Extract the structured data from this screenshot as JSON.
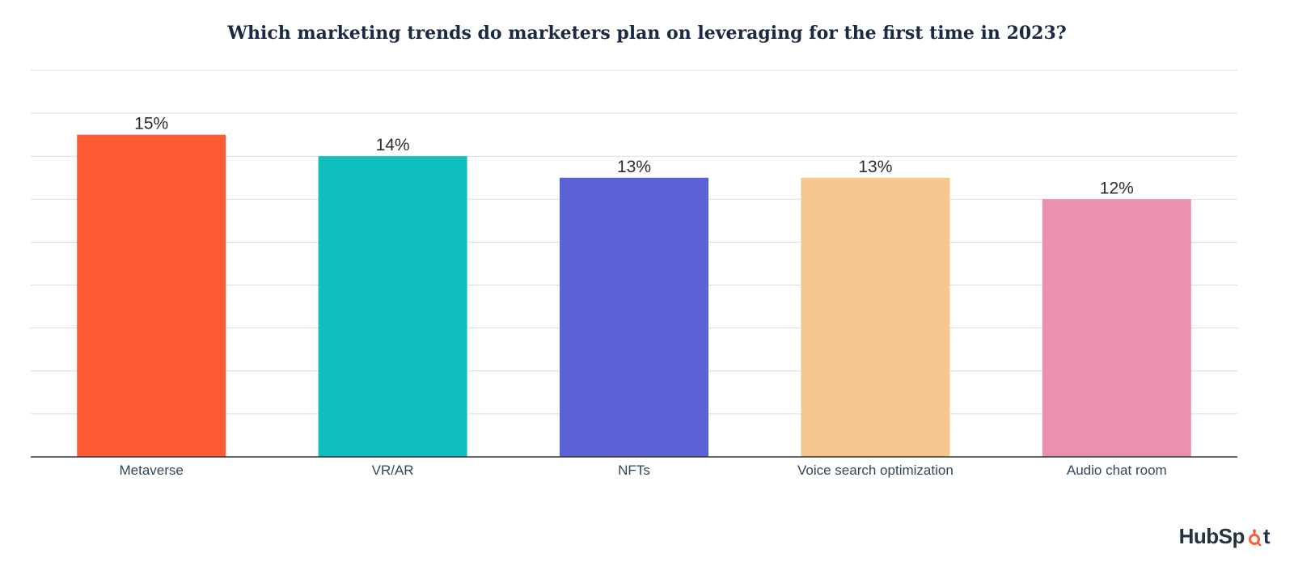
{
  "chart_data": {
    "type": "bar",
    "title": "Which marketing trends do marketers plan on leveraging for the first time in 2023?",
    "categories": [
      "Metaverse",
      "VR/AR",
      "NFTs",
      "Voice search optimization",
      "Audio chat room"
    ],
    "values": [
      15,
      14,
      13,
      13,
      12
    ],
    "data_labels": [
      "15%",
      "14%",
      "13%",
      "13%",
      "12%"
    ],
    "colors": [
      "#ff5c35",
      "#0fbfbf",
      "#5c62d6",
      "#f5c78e",
      "#ea90b1"
    ],
    "ylim": [
      0,
      18
    ],
    "grid": true,
    "xlabel": "",
    "ylabel": ""
  },
  "branding": {
    "logo_text_before": "HubSp",
    "logo_text_after": "t",
    "logo_icon": "sprocket-icon",
    "logo_color": "#213343",
    "logo_accent": "#ff5c35"
  }
}
